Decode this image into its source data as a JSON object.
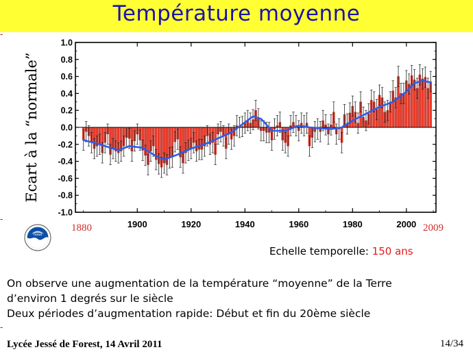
{
  "slide": {
    "title": "Température moyenne",
    "timescale_label": "Echelle temporelle:",
    "timescale_value": "150 ans",
    "body_lines": [
      "On observe une augmentation de la température “moyenne” de la Terre",
      "d’environ 1 degrés sur le siècle",
      "Deux périodes d’augmentation rapide: Début et fin du 20ème siècle"
    ],
    "footer_left": "Lycée Jessé de Forest, 14 Avril 2011",
    "page_number": "14/34",
    "logo": "noaa-logo",
    "edge_marks": [
      "-",
      "-",
      "-"
    ]
  },
  "colors": {
    "title_bg": "#ffff33",
    "title_text": "#1a14a8",
    "bars": "#ee3b2b",
    "smooth_line": "#2f5be8",
    "error_bars": "#222222",
    "accent_red": "#d32b2b"
  },
  "chart_data": {
    "type": "bar",
    "title": "",
    "xlabel": "",
    "ylabel": "Ecart à la “normale”",
    "x_start_label": "1880",
    "x_end_label": "2009",
    "xlim": [
      1877,
      2011
    ],
    "ylim": [
      -1.0,
      1.0
    ],
    "x_ticks": [
      "1900",
      "1920",
      "1940",
      "1960",
      "1980",
      "2000"
    ],
    "y_ticks": [
      "1.0",
      "0.8",
      "0.6",
      "0.4",
      "0.2",
      "0.0",
      "-0.2",
      "-0.4",
      "-0.6",
      "-0.8",
      "-1.0"
    ],
    "grid": false,
    "legend": "none",
    "error_bar_halfwidth": 0.12,
    "series": [
      {
        "kind": "bars_with_error",
        "start_year": 1880,
        "values": [
          -0.15,
          -0.05,
          -0.1,
          -0.18,
          -0.25,
          -0.22,
          -0.2,
          -0.3,
          -0.18,
          -0.08,
          -0.32,
          -0.25,
          -0.28,
          -0.3,
          -0.28,
          -0.22,
          -0.12,
          -0.13,
          -0.28,
          -0.16,
          -0.08,
          -0.15,
          -0.27,
          -0.33,
          -0.44,
          -0.28,
          -0.22,
          -0.38,
          -0.43,
          -0.47,
          -0.42,
          -0.44,
          -0.36,
          -0.35,
          -0.17,
          -0.14,
          -0.35,
          -0.42,
          -0.3,
          -0.27,
          -0.25,
          -0.18,
          -0.28,
          -0.26,
          -0.26,
          -0.22,
          -0.1,
          -0.2,
          -0.18,
          -0.32,
          -0.08,
          -0.05,
          -0.1,
          -0.25,
          -0.08,
          -0.14,
          -0.1,
          0.02,
          0.0,
          0.01,
          0.05,
          0.08,
          0.05,
          0.09,
          0.2,
          0.1,
          -0.04,
          -0.04,
          -0.06,
          -0.06,
          -0.15,
          -0.02,
          0.02,
          0.06,
          -0.15,
          -0.18,
          -0.22,
          0.02,
          0.06,
          0.02,
          -0.04,
          0.05,
          0.02,
          0.05,
          -0.22,
          -0.12,
          -0.05,
          -0.02,
          -0.05,
          0.08,
          0.03,
          -0.08,
          0.03,
          0.18,
          -0.08,
          -0.02,
          -0.18,
          0.15,
          0.04,
          0.17,
          0.25,
          0.18,
          0.05,
          0.3,
          0.12,
          0.08,
          0.16,
          0.32,
          0.3,
          0.21,
          0.38,
          0.35,
          0.18,
          0.2,
          0.3,
          0.43,
          0.35,
          0.6,
          0.4,
          0.4,
          0.55,
          0.51,
          0.61,
          0.56,
          0.46,
          0.62,
          0.57,
          0.59,
          0.46,
          0.54
        ]
      },
      {
        "kind": "smoothed_line",
        "x": [
          1880,
          1885,
          1890,
          1893,
          1897,
          1902,
          1906,
          1910,
          1915,
          1920,
          1925,
          1930,
          1935,
          1940,
          1943,
          1946,
          1950,
          1955,
          1960,
          1964,
          1968,
          1972,
          1976,
          1980,
          1985,
          1990,
          1995,
          2000,
          2003,
          2006,
          2009
        ],
        "values": [
          -0.15,
          -0.19,
          -0.24,
          -0.27,
          -0.22,
          -0.24,
          -0.32,
          -0.38,
          -0.32,
          -0.25,
          -0.2,
          -0.13,
          -0.06,
          0.06,
          0.13,
          0.1,
          -0.04,
          -0.04,
          0.02,
          0.0,
          -0.01,
          -0.02,
          0.0,
          0.08,
          0.16,
          0.24,
          0.3,
          0.42,
          0.52,
          0.55,
          0.53
        ]
      }
    ]
  }
}
